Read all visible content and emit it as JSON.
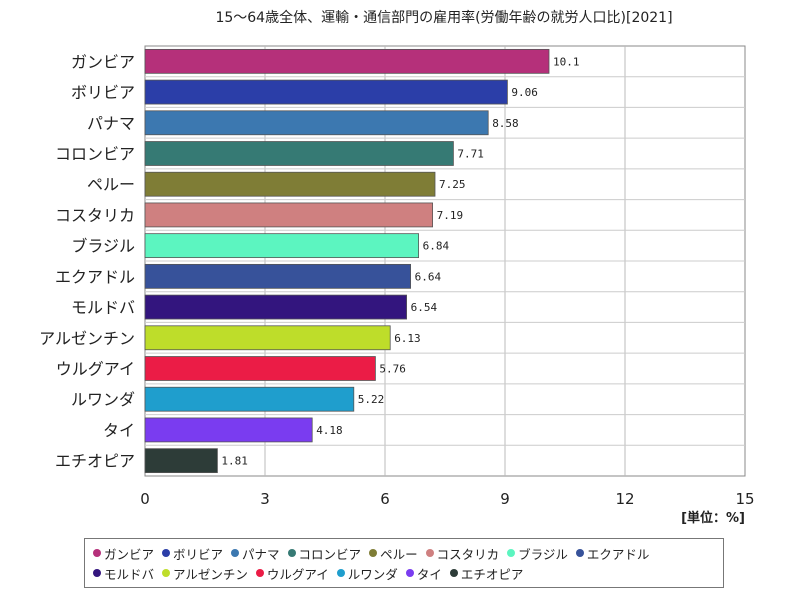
{
  "chart_data": {
    "type": "bar",
    "orientation": "horizontal",
    "title": "15〜64歳全体、運輸・通信部門の雇用率(労働年齢の就労人口比)[2021]",
    "unit_label": "[単位：%]",
    "categories": [
      "ガンビア",
      "ボリビア",
      "パナマ",
      "コロンビア",
      "ペルー",
      "コスタリカ",
      "ブラジル",
      "エクアドル",
      "モルドバ",
      "アルゼンチン",
      "ウルグアイ",
      "ルワンダ",
      "タイ",
      "エチオピア"
    ],
    "values": [
      10.1,
      9.06,
      8.58,
      7.71,
      7.25,
      7.19,
      6.84,
      6.64,
      6.54,
      6.13,
      5.76,
      5.22,
      4.18,
      1.81
    ],
    "value_labels": [
      "10.1",
      "9.06",
      "8.58",
      "7.71",
      "7.25",
      "7.19",
      "6.84",
      "6.64",
      "6.54",
      "6.13",
      "5.76",
      "5.22",
      "4.18",
      "1.81"
    ],
    "colors": [
      "#b5307a",
      "#2b3ea8",
      "#3c78b0",
      "#367a74",
      "#7f7d36",
      "#cf8080",
      "#5cf5c0",
      "#37529a",
      "#33157e",
      "#bedd2a",
      "#eb1c46",
      "#1f9ecd",
      "#7a3cf0",
      "#2d3c38"
    ],
    "xlim": [
      0,
      15
    ],
    "xticks": [
      "0",
      "3",
      "6",
      "9",
      "12",
      "15"
    ],
    "grid": true,
    "legend_position": "bottom"
  }
}
